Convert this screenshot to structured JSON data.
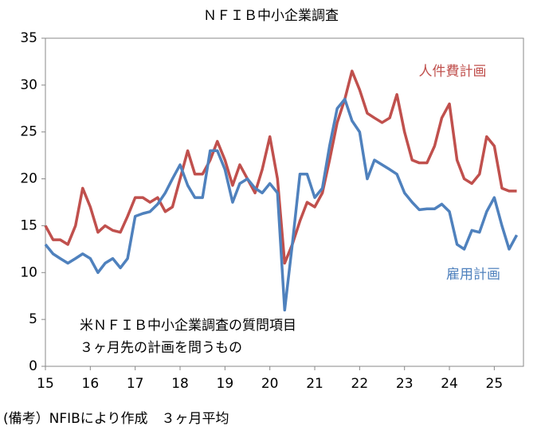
{
  "chart_data": {
    "type": "line",
    "title": "ＮＦＩＢ中小企業調査",
    "x": [
      15,
      15.17,
      15.33,
      15.5,
      15.67,
      15.83,
      16,
      16.17,
      16.33,
      16.5,
      16.67,
      16.83,
      17,
      17.17,
      17.33,
      17.5,
      17.67,
      17.83,
      18,
      18.17,
      18.33,
      18.5,
      18.67,
      18.83,
      19,
      19.17,
      19.33,
      19.5,
      19.67,
      19.83,
      20,
      20.17,
      20.33,
      20.5,
      20.67,
      20.83,
      21,
      21.17,
      21.33,
      21.5,
      21.67,
      21.83,
      22,
      22.17,
      22.33,
      22.5,
      22.67,
      22.83,
      23,
      23.17,
      23.33,
      23.5,
      23.67,
      23.83,
      24,
      24.17,
      24.33,
      24.5,
      24.67,
      24.83,
      25,
      25.17,
      25.33,
      25.5
    ],
    "series": [
      {
        "name": "人件費計画",
        "color": "#c0504d",
        "values": [
          15,
          13.5,
          13.5,
          13,
          15,
          19,
          17,
          14.3,
          15,
          14.5,
          14.3,
          16,
          18,
          18,
          17.5,
          18,
          16.5,
          17,
          20,
          23,
          20.5,
          20.5,
          22,
          24,
          22,
          19.3,
          21.5,
          20,
          18.5,
          21,
          24.5,
          20,
          11,
          13,
          15.5,
          17.5,
          17,
          18.5,
          22,
          26,
          28.5,
          31.5,
          29.5,
          27,
          26.5,
          26,
          26.5,
          29,
          25,
          22,
          21.7,
          21.7,
          23.5,
          26.5,
          28,
          22,
          20,
          19.5,
          20.5,
          24.5,
          23.5,
          19,
          18.7,
          18.7
        ]
      },
      {
        "name": "雇用計画",
        "color": "#4f81bd",
        "values": [
          13,
          12,
          11.5,
          11,
          11.5,
          12,
          11.5,
          10,
          11,
          11.5,
          10.5,
          11.5,
          16,
          16.3,
          16.5,
          17.3,
          18.5,
          20,
          21.5,
          19.3,
          18,
          18,
          23,
          23,
          21,
          17.5,
          19.5,
          20,
          19,
          18.5,
          19.5,
          18.5,
          6,
          13,
          20.5,
          20.5,
          18,
          19,
          23.5,
          27.5,
          28.5,
          26.2,
          25,
          20,
          22,
          21.5,
          21,
          20.5,
          18.5,
          17.5,
          16.7,
          16.8,
          16.8,
          17.3,
          16.5,
          13,
          12.5,
          14.5,
          14.3,
          16.5,
          18,
          15,
          12.5,
          14
        ]
      }
    ],
    "xlim": [
      15,
      25.65
    ],
    "xticks": [
      15,
      16,
      17,
      18,
      19,
      20,
      21,
      22,
      23,
      24,
      25
    ],
    "ylim": [
      0,
      35
    ],
    "yticks": [
      0,
      5,
      10,
      15,
      20,
      25,
      30,
      35
    ],
    "annotations": [
      "米ＮＦＩＢ中小企業調査の質問項目",
      "３ヶ月先の計画を問うもの"
    ],
    "footnote": "(備考）NFIBにより作成　３ヶ月平均"
  }
}
